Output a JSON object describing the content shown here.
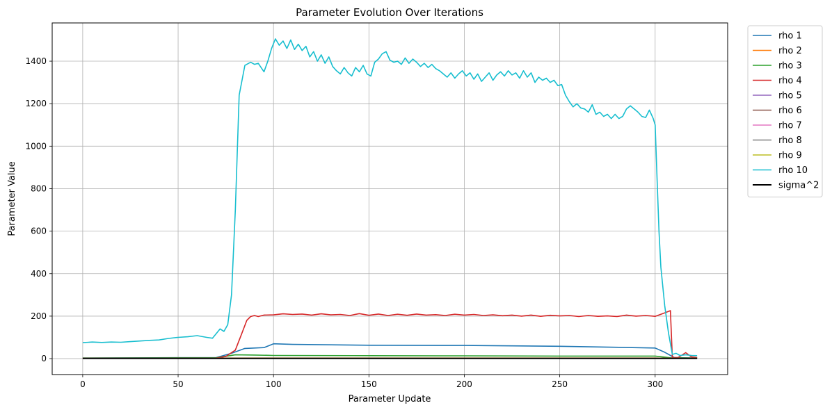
{
  "chart_data": {
    "type": "line",
    "title": "Parameter Evolution Over Iterations",
    "xlabel": "Parameter Update",
    "ylabel": "Parameter Value",
    "xlim": [
      -16,
      338
    ],
    "ylim": [
      -75,
      1580
    ],
    "xticks": [
      0,
      50,
      100,
      150,
      200,
      250,
      300
    ],
    "yticks": [
      0,
      200,
      400,
      600,
      800,
      1000,
      1200,
      1400
    ],
    "grid": true,
    "legend_position": "outside-right",
    "series": [
      {
        "name": "rho 1",
        "color": "#1f77b4",
        "points": [
          [
            0,
            3
          ],
          [
            70,
            5
          ],
          [
            78,
            25
          ],
          [
            85,
            48
          ],
          [
            95,
            52
          ],
          [
            100,
            70
          ],
          [
            110,
            67
          ],
          [
            150,
            63
          ],
          [
            200,
            62
          ],
          [
            250,
            58
          ],
          [
            300,
            50
          ],
          [
            305,
            30
          ],
          [
            310,
            5
          ],
          [
            322,
            3
          ]
        ]
      },
      {
        "name": "rho 2",
        "color": "#ff7f0e",
        "points": [
          [
            0,
            2
          ],
          [
            100,
            3
          ],
          [
            200,
            3
          ],
          [
            300,
            3
          ],
          [
            310,
            2
          ],
          [
            322,
            2
          ]
        ]
      },
      {
        "name": "rho 3",
        "color": "#2ca02c",
        "points": [
          [
            0,
            3
          ],
          [
            70,
            4
          ],
          [
            80,
            18
          ],
          [
            90,
            17
          ],
          [
            100,
            15
          ],
          [
            150,
            14
          ],
          [
            200,
            13
          ],
          [
            250,
            12
          ],
          [
            300,
            12
          ],
          [
            308,
            4
          ],
          [
            322,
            3
          ]
        ]
      },
      {
        "name": "rho 4",
        "color": "#d62728",
        "points": [
          [
            0,
            2
          ],
          [
            70,
            3
          ],
          [
            75,
            10
          ],
          [
            80,
            40
          ],
          [
            83,
            110
          ],
          [
            86,
            180
          ],
          [
            88,
            198
          ],
          [
            90,
            203
          ],
          [
            92,
            198
          ],
          [
            95,
            205
          ],
          [
            100,
            206
          ],
          [
            105,
            211
          ],
          [
            110,
            208
          ],
          [
            115,
            210
          ],
          [
            120,
            205
          ],
          [
            125,
            211
          ],
          [
            130,
            206
          ],
          [
            135,
            208
          ],
          [
            140,
            203
          ],
          [
            145,
            212
          ],
          [
            150,
            204
          ],
          [
            155,
            210
          ],
          [
            160,
            203
          ],
          [
            165,
            209
          ],
          [
            170,
            204
          ],
          [
            175,
            210
          ],
          [
            180,
            205
          ],
          [
            185,
            207
          ],
          [
            190,
            203
          ],
          [
            195,
            209
          ],
          [
            200,
            205
          ],
          [
            205,
            208
          ],
          [
            210,
            203
          ],
          [
            215,
            206
          ],
          [
            220,
            202
          ],
          [
            225,
            205
          ],
          [
            230,
            200
          ],
          [
            235,
            205
          ],
          [
            240,
            199
          ],
          [
            245,
            204
          ],
          [
            250,
            201
          ],
          [
            255,
            203
          ],
          [
            260,
            198
          ],
          [
            265,
            203
          ],
          [
            270,
            199
          ],
          [
            275,
            201
          ],
          [
            280,
            198
          ],
          [
            285,
            205
          ],
          [
            290,
            200
          ],
          [
            295,
            203
          ],
          [
            300,
            199
          ],
          [
            305,
            215
          ],
          [
            308,
            226
          ],
          [
            309,
            5
          ],
          [
            312,
            5
          ],
          [
            316,
            28
          ],
          [
            319,
            8
          ],
          [
            322,
            5
          ]
        ]
      },
      {
        "name": "rho 5",
        "color": "#9467bd",
        "points": [
          [
            0,
            2
          ],
          [
            322,
            2
          ]
        ]
      },
      {
        "name": "rho 6",
        "color": "#8c564b",
        "points": [
          [
            0,
            2
          ],
          [
            322,
            2
          ]
        ]
      },
      {
        "name": "rho 7",
        "color": "#e377c2",
        "points": [
          [
            0,
            2
          ],
          [
            322,
            2
          ]
        ]
      },
      {
        "name": "rho 8",
        "color": "#7f7f7f",
        "points": [
          [
            0,
            2
          ],
          [
            322,
            2
          ]
        ]
      },
      {
        "name": "rho 9",
        "color": "#bcbd22",
        "points": [
          [
            0,
            2
          ],
          [
            322,
            2
          ]
        ]
      },
      {
        "name": "rho 10",
        "color": "#17becf",
        "points": [
          [
            0,
            75
          ],
          [
            5,
            78
          ],
          [
            10,
            76
          ],
          [
            15,
            78
          ],
          [
            20,
            77
          ],
          [
            25,
            80
          ],
          [
            30,
            83
          ],
          [
            35,
            86
          ],
          [
            40,
            88
          ],
          [
            45,
            95
          ],
          [
            50,
            100
          ],
          [
            55,
            103
          ],
          [
            60,
            108
          ],
          [
            65,
            100
          ],
          [
            68,
            96
          ],
          [
            70,
            118
          ],
          [
            72,
            140
          ],
          [
            74,
            128
          ],
          [
            76,
            160
          ],
          [
            78,
            300
          ],
          [
            80,
            700
          ],
          [
            82,
            1240
          ],
          [
            85,
            1380
          ],
          [
            88,
            1395
          ],
          [
            90,
            1385
          ],
          [
            92,
            1390
          ],
          [
            95,
            1350
          ],
          [
            97,
            1400
          ],
          [
            99,
            1460
          ],
          [
            101,
            1505
          ],
          [
            103,
            1475
          ],
          [
            105,
            1495
          ],
          [
            107,
            1460
          ],
          [
            109,
            1500
          ],
          [
            111,
            1455
          ],
          [
            113,
            1480
          ],
          [
            115,
            1450
          ],
          [
            117,
            1470
          ],
          [
            119,
            1420
          ],
          [
            121,
            1445
          ],
          [
            123,
            1400
          ],
          [
            125,
            1430
          ],
          [
            127,
            1390
          ],
          [
            129,
            1420
          ],
          [
            131,
            1375
          ],
          [
            133,
            1355
          ],
          [
            135,
            1340
          ],
          [
            137,
            1370
          ],
          [
            139,
            1345
          ],
          [
            141,
            1330
          ],
          [
            143,
            1370
          ],
          [
            145,
            1350
          ],
          [
            147,
            1380
          ],
          [
            149,
            1340
          ],
          [
            151,
            1330
          ],
          [
            153,
            1395
          ],
          [
            155,
            1410
          ],
          [
            157,
            1435
          ],
          [
            159,
            1445
          ],
          [
            161,
            1405
          ],
          [
            163,
            1395
          ],
          [
            165,
            1400
          ],
          [
            167,
            1385
          ],
          [
            169,
            1415
          ],
          [
            171,
            1390
          ],
          [
            173,
            1410
          ],
          [
            175,
            1395
          ],
          [
            177,
            1375
          ],
          [
            179,
            1390
          ],
          [
            181,
            1370
          ],
          [
            183,
            1385
          ],
          [
            185,
            1365
          ],
          [
            187,
            1355
          ],
          [
            189,
            1340
          ],
          [
            191,
            1325
          ],
          [
            193,
            1345
          ],
          [
            195,
            1320
          ],
          [
            197,
            1340
          ],
          [
            199,
            1355
          ],
          [
            201,
            1330
          ],
          [
            203,
            1345
          ],
          [
            205,
            1315
          ],
          [
            207,
            1340
          ],
          [
            209,
            1305
          ],
          [
            211,
            1325
          ],
          [
            213,
            1345
          ],
          [
            215,
            1310
          ],
          [
            217,
            1335
          ],
          [
            219,
            1350
          ],
          [
            221,
            1330
          ],
          [
            223,
            1355
          ],
          [
            225,
            1335
          ],
          [
            227,
            1345
          ],
          [
            229,
            1320
          ],
          [
            231,
            1355
          ],
          [
            233,
            1325
          ],
          [
            235,
            1345
          ],
          [
            237,
            1300
          ],
          [
            239,
            1325
          ],
          [
            241,
            1310
          ],
          [
            243,
            1320
          ],
          [
            245,
            1300
          ],
          [
            247,
            1310
          ],
          [
            249,
            1285
          ],
          [
            251,
            1290
          ],
          [
            253,
            1240
          ],
          [
            255,
            1210
          ],
          [
            257,
            1185
          ],
          [
            259,
            1200
          ],
          [
            261,
            1180
          ],
          [
            263,
            1175
          ],
          [
            265,
            1160
          ],
          [
            267,
            1195
          ],
          [
            269,
            1150
          ],
          [
            271,
            1160
          ],
          [
            273,
            1140
          ],
          [
            275,
            1150
          ],
          [
            277,
            1130
          ],
          [
            279,
            1150
          ],
          [
            281,
            1130
          ],
          [
            283,
            1140
          ],
          [
            285,
            1175
          ],
          [
            287,
            1190
          ],
          [
            289,
            1175
          ],
          [
            291,
            1160
          ],
          [
            293,
            1140
          ],
          [
            295,
            1135
          ],
          [
            297,
            1170
          ],
          [
            299,
            1130
          ],
          [
            300,
            1100
          ],
          [
            301,
            850
          ],
          [
            302,
            600
          ],
          [
            303,
            430
          ],
          [
            305,
            250
          ],
          [
            307,
            120
          ],
          [
            309,
            20
          ],
          [
            311,
            25
          ],
          [
            313,
            15
          ],
          [
            316,
            18
          ],
          [
            319,
            15
          ],
          [
            322,
            14
          ]
        ]
      },
      {
        "name": "sigma^2",
        "color": "#000000",
        "points": [
          [
            0,
            1
          ],
          [
            100,
            1
          ],
          [
            200,
            1
          ],
          [
            300,
            1
          ],
          [
            322,
            1
          ]
        ]
      }
    ]
  }
}
